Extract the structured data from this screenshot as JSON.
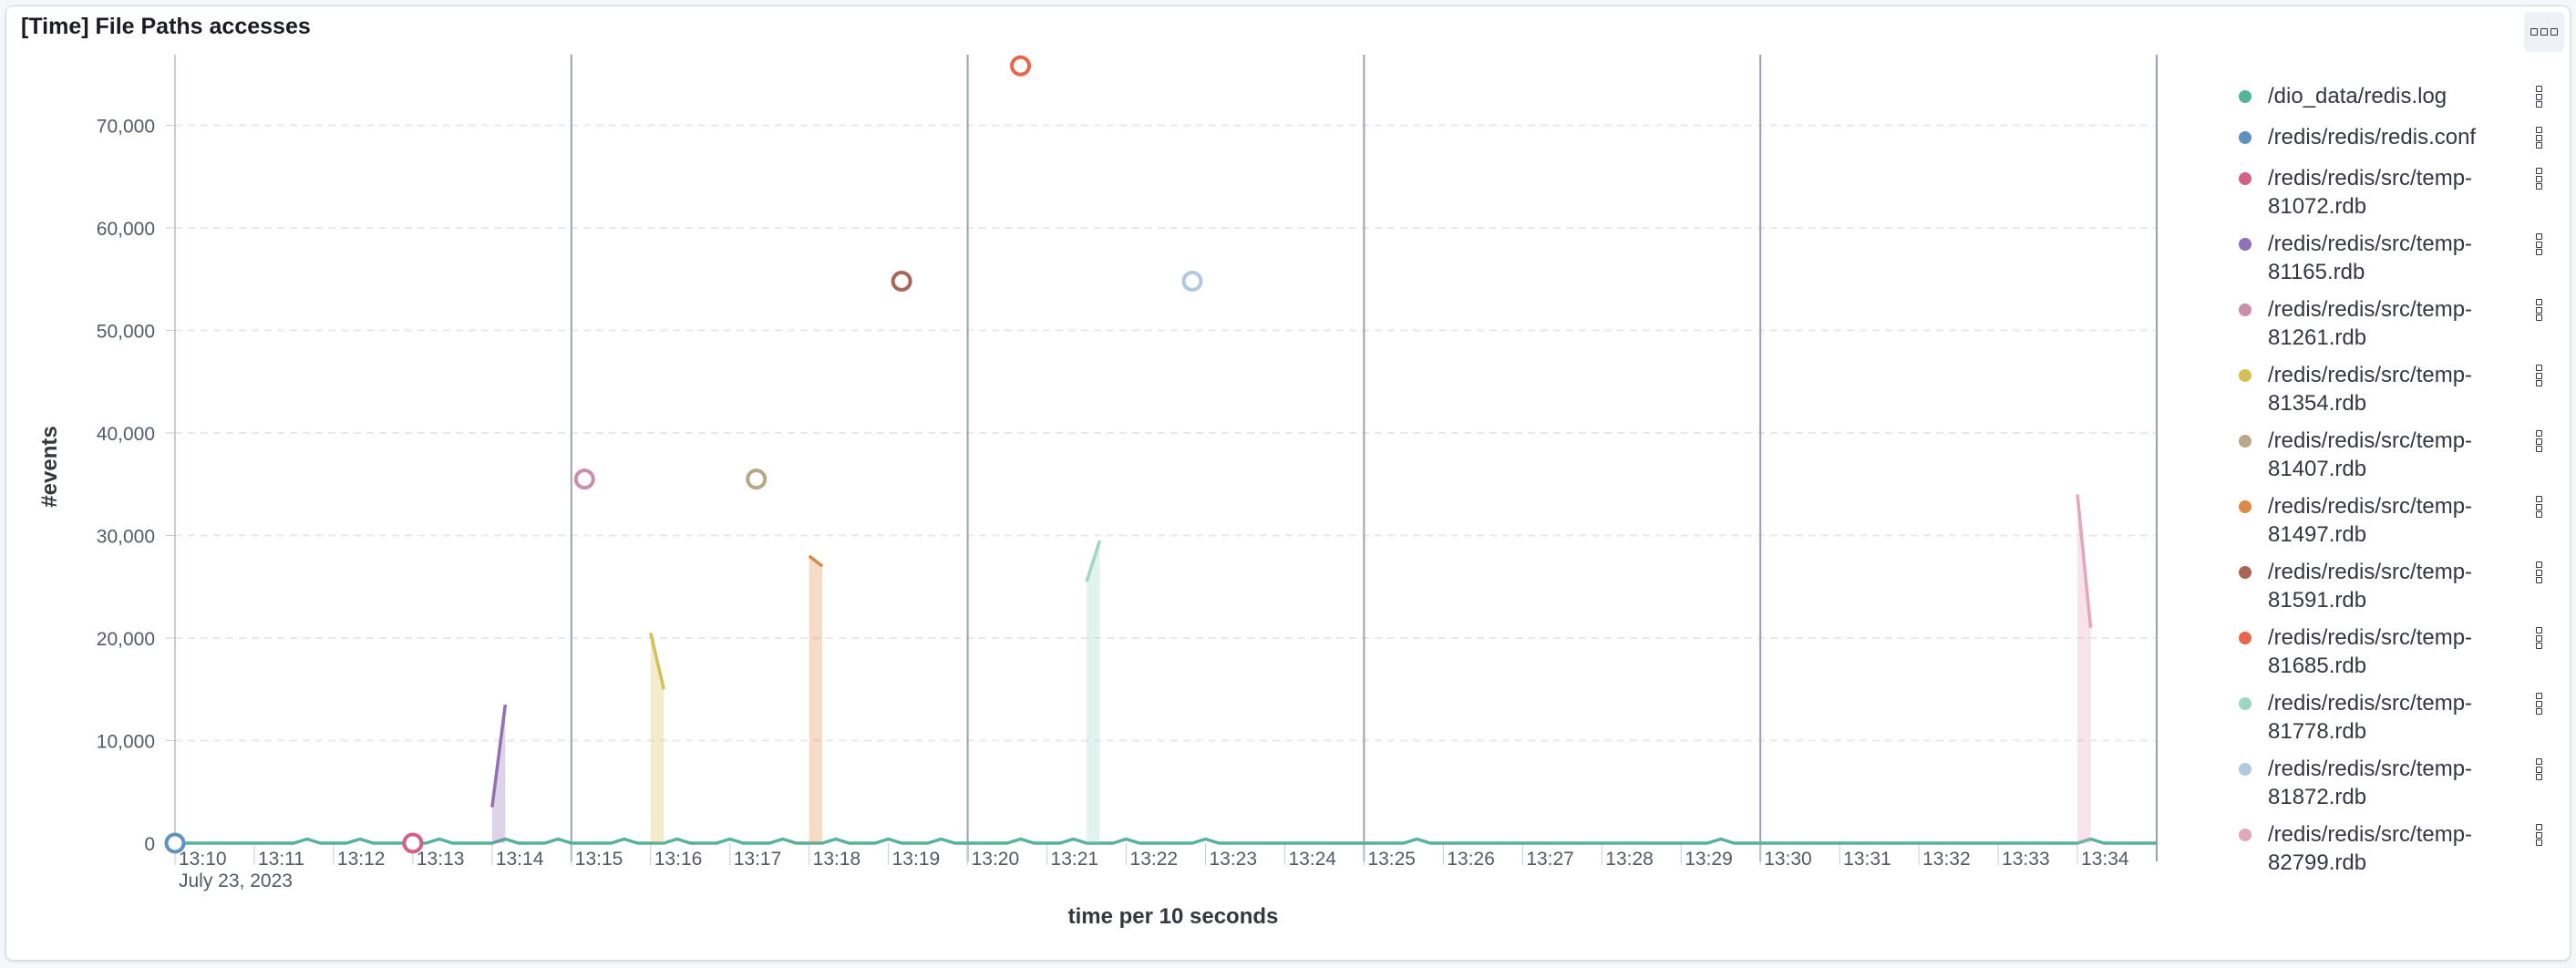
{
  "panel": {
    "title": "[Time] File Paths accesses",
    "options_icon": "boxes-horizontal-icon"
  },
  "chart_data": {
    "type": "line",
    "ylabel": "#events",
    "xlabel": "time per 10 seconds",
    "ylim": [
      0,
      76000
    ],
    "yticks": [
      0,
      10000,
      20000,
      30000,
      40000,
      50000,
      60000,
      70000
    ],
    "ytick_labels": [
      "0",
      "10,000",
      "20,000",
      "30,000",
      "40,000",
      "50,000",
      "60,000",
      "70,000"
    ],
    "xlim": [
      "13:10:00",
      "13:35:00"
    ],
    "xticks": [
      "13:10",
      "13:11",
      "13:12",
      "13:13",
      "13:14",
      "13:15",
      "13:16",
      "13:17",
      "13:18",
      "13:19",
      "13:20",
      "13:21",
      "13:22",
      "13:23",
      "13:24",
      "13:25",
      "13:26",
      "13:27",
      "13:28",
      "13:29",
      "13:30",
      "13:31",
      "13:32",
      "13:33",
      "13:34"
    ],
    "date_label": "July 23, 2023",
    "grid": true,
    "legend_position": "right",
    "series": [
      {
        "name": "/dio_data/redis.log",
        "color": "#54b399",
        "points": [
          [
            "13:10:00",
            0
          ],
          [
            "13:11:30",
            0
          ],
          [
            "13:11:40",
            400
          ],
          [
            "13:11:50",
            0
          ],
          [
            "13:12:10",
            0
          ],
          [
            "13:12:20",
            400
          ],
          [
            "13:12:30",
            0
          ],
          [
            "13:13:10",
            0
          ],
          [
            "13:13:20",
            400
          ],
          [
            "13:13:30",
            0
          ],
          [
            "13:14:00",
            0
          ],
          [
            "13:14:10",
            400
          ],
          [
            "13:14:20",
            0
          ],
          [
            "13:14:40",
            0
          ],
          [
            "13:14:50",
            400
          ],
          [
            "13:15:00",
            0
          ],
          [
            "13:15:30",
            0
          ],
          [
            "13:15:40",
            400
          ],
          [
            "13:15:50",
            0
          ],
          [
            "13:16:10",
            0
          ],
          [
            "13:16:20",
            400
          ],
          [
            "13:16:30",
            0
          ],
          [
            "13:16:50",
            0
          ],
          [
            "13:17:00",
            400
          ],
          [
            "13:17:10",
            0
          ],
          [
            "13:17:30",
            0
          ],
          [
            "13:17:40",
            400
          ],
          [
            "13:17:50",
            0
          ],
          [
            "13:18:10",
            0
          ],
          [
            "13:18:20",
            400
          ],
          [
            "13:18:30",
            0
          ],
          [
            "13:18:50",
            0
          ],
          [
            "13:19:00",
            400
          ],
          [
            "13:19:10",
            0
          ],
          [
            "13:19:30",
            0
          ],
          [
            "13:19:40",
            400
          ],
          [
            "13:19:50",
            0
          ],
          [
            "13:20:30",
            0
          ],
          [
            "13:20:40",
            400
          ],
          [
            "13:20:50",
            0
          ],
          [
            "13:21:10",
            0
          ],
          [
            "13:21:20",
            400
          ],
          [
            "13:21:30",
            0
          ],
          [
            "13:21:50",
            0
          ],
          [
            "13:22:00",
            400
          ],
          [
            "13:22:10",
            0
          ],
          [
            "13:22:50",
            0
          ],
          [
            "13:23:00",
            400
          ],
          [
            "13:23:10",
            0
          ],
          [
            "13:25:30",
            0
          ],
          [
            "13:25:40",
            400
          ],
          [
            "13:25:50",
            0
          ],
          [
            "13:29:20",
            0
          ],
          [
            "13:29:30",
            400
          ],
          [
            "13:29:40",
            0
          ],
          [
            "13:34:00",
            0
          ],
          [
            "13:34:10",
            400
          ],
          [
            "13:34:20",
            0
          ],
          [
            "13:35:00",
            0
          ]
        ]
      },
      {
        "name": "/redis/redis/redis.conf",
        "color": "#6092c0",
        "points": [
          [
            "13:10:00",
            0
          ]
        ]
      },
      {
        "name": "/redis/redis/src/temp-81072.rdb",
        "color": "#d36086",
        "points": [
          [
            "13:13:00",
            0
          ]
        ]
      },
      {
        "name": "/redis/redis/src/temp-81165.rdb",
        "color": "#9170b8",
        "points": [
          [
            "13:14:00",
            3500
          ],
          [
            "13:14:10",
            13500
          ]
        ]
      },
      {
        "name": "/redis/redis/src/temp-81261.rdb",
        "color": "#ca8eae",
        "points": [
          [
            "13:15:10",
            35500
          ]
        ]
      },
      {
        "name": "/redis/redis/src/temp-81354.rdb",
        "color": "#d6bf57",
        "points": [
          [
            "13:16:00",
            20500
          ],
          [
            "13:16:10",
            15000
          ]
        ]
      },
      {
        "name": "/redis/redis/src/temp-81407.rdb",
        "color": "#b9a888",
        "points": [
          [
            "13:17:20",
            35500
          ]
        ]
      },
      {
        "name": "/redis/redis/src/temp-81497.rdb",
        "color": "#da8b45",
        "points": [
          [
            "13:18:00",
            28000
          ],
          [
            "13:18:10",
            27000
          ]
        ]
      },
      {
        "name": "/redis/redis/src/temp-81591.rdb",
        "color": "#aa6556",
        "points": [
          [
            "13:19:10",
            54800
          ]
        ]
      },
      {
        "name": "/redis/redis/src/temp-81685.rdb",
        "color": "#e7664c",
        "points": [
          [
            "13:20:40",
            75800
          ]
        ]
      },
      {
        "name": "/redis/redis/src/temp-81778.rdb",
        "color": "#9fd6c2",
        "points": [
          [
            "13:21:30",
            25500
          ],
          [
            "13:21:40",
            29500
          ]
        ]
      },
      {
        "name": "/redis/redis/src/temp-81872.rdb",
        "color": "#b0c9e0",
        "points": [
          [
            "13:22:50",
            54800
          ]
        ]
      },
      {
        "name": "/redis/redis/src/temp-82799.rdb",
        "color": "#e4a6b9",
        "points": [
          [
            "13:34:00",
            34000
          ],
          [
            "13:34:10",
            21000
          ]
        ]
      }
    ]
  }
}
